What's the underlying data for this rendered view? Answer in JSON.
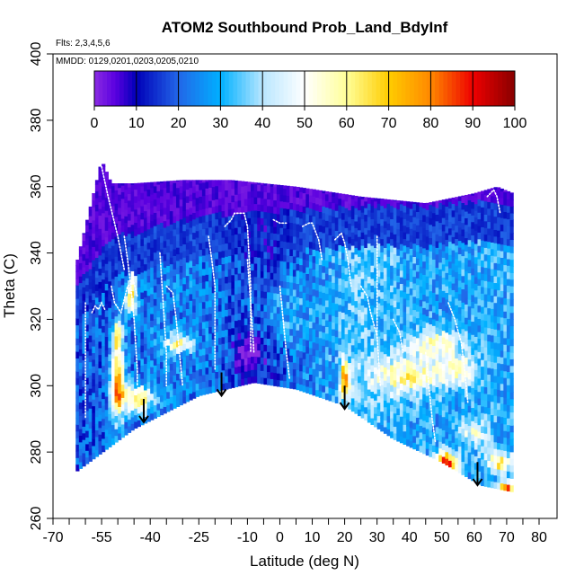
{
  "chart_data": {
    "type": "heatmap",
    "title": "ATOM2 Southbound Prob_Land_BdyInf",
    "annotations": {
      "flights": "Flts: 2,3,4,5,6",
      "dates": "MMDD: 0129,0201,0203,0205,0210"
    },
    "xlabel": "Latitude (deg N)",
    "ylabel": "Theta (C)",
    "xlim": [
      -70,
      80
    ],
    "ylim": [
      260,
      400
    ],
    "x_major_ticks": [
      -70,
      -55,
      -40,
      -25,
      -10,
      0,
      10,
      20,
      30,
      40,
      50,
      60,
      70,
      80
    ],
    "x_tick_labels": [
      "-70",
      "-55",
      "-40",
      "-25",
      "-10",
      "0",
      "10",
      "20",
      "30",
      "40",
      "50",
      "60",
      "70",
      "80"
    ],
    "x_minor_ticks": [
      -65,
      -60,
      -50,
      -45,
      -35,
      -30,
      -20,
      -15,
      -5,
      5,
      15,
      25,
      35,
      45,
      55,
      65,
      75
    ],
    "y_ticks": [
      260,
      280,
      300,
      320,
      340,
      360,
      380,
      400
    ],
    "y_tick_labels": [
      "260",
      "280",
      "300",
      "320",
      "340",
      "360",
      "380",
      "400"
    ],
    "colorbar": {
      "range": [
        0,
        100
      ],
      "ticks": [
        0,
        10,
        20,
        30,
        40,
        50,
        60,
        70,
        80,
        90,
        100
      ],
      "tick_labels": [
        "0",
        "10",
        "20",
        "30",
        "40",
        "50",
        "60",
        "70",
        "80",
        "90",
        "100"
      ],
      "stops": [
        {
          "v": 0,
          "color": "#8a2be2"
        },
        {
          "v": 5,
          "color": "#5a00e0"
        },
        {
          "v": 10,
          "color": "#0000b8"
        },
        {
          "v": 20,
          "color": "#2266e8"
        },
        {
          "v": 30,
          "color": "#00b0ff"
        },
        {
          "v": 40,
          "color": "#b8e6ff"
        },
        {
          "v": 50,
          "color": "#ffffff"
        },
        {
          "v": 60,
          "color": "#ffff99"
        },
        {
          "v": 70,
          "color": "#ffcc00"
        },
        {
          "v": 80,
          "color": "#ff8800"
        },
        {
          "v": 90,
          "color": "#ee0000"
        },
        {
          "v": 100,
          "color": "#880000"
        }
      ]
    },
    "domain": {
      "top": [
        [
          -63,
          336
        ],
        [
          -55,
          368
        ],
        [
          -52,
          361
        ],
        [
          -45,
          361
        ],
        [
          -30,
          362
        ],
        [
          -15,
          362
        ],
        [
          5,
          360
        ],
        [
          25,
          357
        ],
        [
          45,
          355
        ],
        [
          60,
          358
        ],
        [
          67,
          360
        ],
        [
          69,
          342
        ],
        [
          70,
          330
        ],
        [
          71,
          320
        ],
        [
          72,
          300
        ],
        [
          72,
          280
        ],
        [
          72,
          268
        ]
      ],
      "bottom": [
        [
          -63,
          274
        ],
        [
          -45,
          287
        ],
        [
          -35,
          292
        ],
        [
          -25,
          297
        ],
        [
          -8,
          301
        ],
        [
          5,
          299
        ],
        [
          20,
          294
        ],
        [
          35,
          284
        ],
        [
          50,
          277
        ],
        [
          62,
          270
        ],
        [
          72,
          268
        ]
      ]
    },
    "field_model": {
      "background": [
        [
          -63,
          18
        ],
        [
          -50,
          20
        ],
        [
          -35,
          25
        ],
        [
          -20,
          22
        ],
        [
          -5,
          12
        ],
        [
          10,
          25
        ],
        [
          25,
          35
        ],
        [
          45,
          28
        ],
        [
          72,
          30
        ]
      ],
      "upper_layer_probability": 2,
      "upper_layer_base": [
        [
          -63,
          330
        ],
        [
          -52,
          345
        ],
        [
          -45,
          346
        ],
        [
          -30,
          350
        ],
        [
          -15,
          352
        ],
        [
          5,
          353
        ],
        [
          25,
          354
        ],
        [
          45,
          354
        ],
        [
          65,
          356
        ],
        [
          72,
          355
        ]
      ],
      "anomalies": [
        {
          "lat": -50,
          "theta": 300,
          "sx": 1.5,
          "sy": 7,
          "amp": 60
        },
        {
          "lat": -50,
          "theta": 315,
          "sx": 1.2,
          "sy": 4,
          "amp": 40
        },
        {
          "lat": -45,
          "theta": 338,
          "sx": 1.0,
          "sy": 5,
          "amp": 55
        },
        {
          "lat": -46,
          "theta": 326,
          "sx": 1.2,
          "sy": 3,
          "amp": 40
        },
        {
          "lat": -44,
          "theta": 296,
          "sx": 3.0,
          "sy": 3,
          "amp": 45
        },
        {
          "lat": -31,
          "theta": 313,
          "sx": 3.0,
          "sy": 2,
          "amp": 35
        },
        {
          "lat": -10,
          "theta": 310,
          "sx": 3.0,
          "sy": 4,
          "amp": -18
        },
        {
          "lat": 20,
          "theta": 302,
          "sx": 1.0,
          "sy": 4,
          "amp": 45
        },
        {
          "lat": 40,
          "theta": 303,
          "sx": 8.0,
          "sy": 4,
          "amp": 30
        },
        {
          "lat": 48,
          "theta": 313,
          "sx": 6.0,
          "sy": 3,
          "amp": 25
        },
        {
          "lat": 55,
          "theta": 305,
          "sx": 4.0,
          "sy": 3,
          "amp": 25
        },
        {
          "lat": 51,
          "theta": 276,
          "sx": 2.5,
          "sy": 2.5,
          "amp": 75
        },
        {
          "lat": 68,
          "theta": 277,
          "sx": 3.0,
          "sy": 2,
          "amp": 35
        },
        {
          "lat": 70,
          "theta": 269,
          "sx": 1.5,
          "sy": 1.5,
          "amp": 55
        },
        {
          "lat": 60,
          "theta": 286,
          "sx": 3.0,
          "sy": 3,
          "amp": 20
        },
        {
          "lat": 0,
          "theta": 322,
          "sx": 6.0,
          "sy": 8,
          "amp": 12
        }
      ]
    },
    "flight_tracks": [
      [
        [
          -58,
          322
        ],
        [
          -57,
          324
        ],
        [
          -56,
          323
        ],
        [
          -55,
          325
        ],
        [
          -54,
          323
        ]
      ],
      [
        [
          -55,
          366
        ],
        [
          -53,
          357
        ],
        [
          -51,
          349
        ],
        [
          -50,
          345
        ],
        [
          -48,
          335
        ]
      ],
      [
        [
          -52,
          330
        ],
        [
          -51,
          325
        ],
        [
          -49,
          322
        ],
        [
          -47,
          330
        ],
        [
          -45,
          331
        ],
        [
          -44,
          327
        ]
      ],
      [
        [
          -48,
          345
        ],
        [
          -47,
          338
        ],
        [
          -46,
          330
        ],
        [
          -45,
          320
        ],
        [
          -44,
          305
        ],
        [
          -44,
          300
        ]
      ],
      [
        [
          -35,
          330
        ],
        [
          -33,
          328
        ],
        [
          -32,
          320
        ],
        [
          -31,
          310
        ],
        [
          -30,
          300
        ]
      ],
      [
        [
          -22,
          345
        ],
        [
          -21,
          338
        ],
        [
          -20,
          330
        ],
        [
          -20,
          318
        ],
        [
          -20,
          305
        ]
      ],
      [
        [
          -17,
          348
        ],
        [
          -15,
          350
        ],
        [
          -14,
          352
        ],
        [
          -12,
          352
        ],
        [
          -11,
          352
        ],
        [
          -10,
          348
        ],
        [
          -9,
          330
        ],
        [
          -9,
          310
        ]
      ],
      [
        [
          -2,
          350
        ],
        [
          0,
          349
        ],
        [
          2,
          349
        ]
      ],
      [
        [
          7,
          348
        ],
        [
          9,
          349
        ],
        [
          10,
          349
        ],
        [
          12,
          344
        ],
        [
          13,
          338
        ]
      ],
      [
        [
          17,
          344
        ],
        [
          19,
          346
        ],
        [
          20,
          343
        ],
        [
          21,
          338
        ],
        [
          22,
          330
        ]
      ],
      [
        [
          -10,
          338
        ],
        [
          -9,
          325
        ],
        [
          -8,
          310
        ]
      ],
      [
        [
          25,
          330
        ],
        [
          27,
          327
        ],
        [
          28,
          322
        ],
        [
          30,
          315
        ]
      ],
      [
        [
          35,
          320
        ],
        [
          37,
          316
        ],
        [
          38,
          310
        ]
      ],
      [
        [
          52,
          325
        ],
        [
          54,
          320
        ],
        [
          56,
          313
        ],
        [
          57,
          305
        ],
        [
          58,
          295
        ]
      ],
      [
        [
          64,
          357
        ],
        [
          66,
          359
        ],
        [
          67,
          357
        ],
        [
          68,
          352
        ]
      ],
      [
        [
          -60,
          325
        ],
        [
          -60,
          310
        ],
        [
          -60,
          300
        ],
        [
          -60,
          290
        ]
      ],
      [
        [
          -37,
          340
        ],
        [
          -36,
          325
        ],
        [
          -35,
          310
        ],
        [
          -35,
          300
        ]
      ],
      [
        [
          0,
          330
        ],
        [
          1,
          320
        ],
        [
          2,
          310
        ],
        [
          3,
          302
        ]
      ],
      [
        [
          45,
          310
        ],
        [
          46,
          300
        ],
        [
          47,
          290
        ],
        [
          48,
          283
        ]
      ],
      [
        [
          30,
          345
        ],
        [
          30,
          330
        ],
        [
          30,
          315
        ],
        [
          31,
          300
        ]
      ]
    ],
    "arrows": [
      {
        "lat": -42,
        "theta_from": 296,
        "theta_to": 289
      },
      {
        "lat": -18,
        "theta_from": 304,
        "theta_to": 297
      },
      {
        "lat": 20,
        "theta_from": 300,
        "theta_to": 293
      },
      {
        "lat": 61,
        "theta_from": 277,
        "theta_to": 270
      }
    ]
  }
}
